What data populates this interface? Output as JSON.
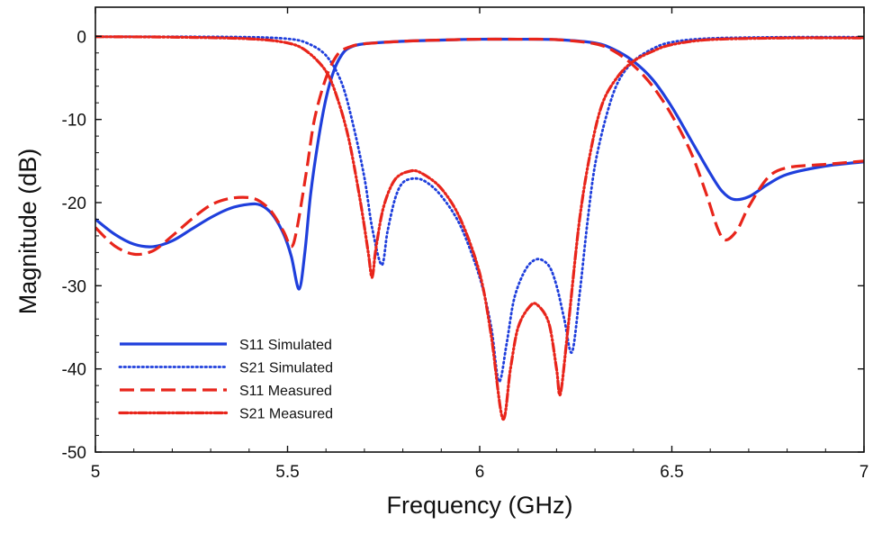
{
  "chart_data": {
    "type": "line",
    "xlabel": "Frequency (GHz)",
    "ylabel": "Magnitude (dB)",
    "xlim": [
      5,
      7
    ],
    "ylim": [
      -50,
      3.5
    ],
    "xticks": [
      5,
      5.5,
      6,
      6.5,
      7
    ],
    "xtick_labels": [
      "5",
      "5.5",
      "6",
      "6.5",
      "7"
    ],
    "yticks": [
      0,
      -10,
      -20,
      -30,
      -40,
      -50
    ],
    "ytick_labels": [
      "0",
      "-10",
      "-20",
      "-30",
      "-40",
      "-50"
    ],
    "grid": false,
    "legend_position": "bottom-left",
    "series": [
      {
        "name": "S11 Simulated",
        "color": "#1f3fdc",
        "style": "solid",
        "points": [
          [
            5.0,
            -22.0
          ],
          [
            5.05,
            -23.8
          ],
          [
            5.1,
            -25.0
          ],
          [
            5.15,
            -25.3
          ],
          [
            5.2,
            -24.6
          ],
          [
            5.25,
            -23.2
          ],
          [
            5.3,
            -21.8
          ],
          [
            5.35,
            -20.7
          ],
          [
            5.4,
            -20.2
          ],
          [
            5.43,
            -20.3
          ],
          [
            5.46,
            -21.4
          ],
          [
            5.49,
            -23.8
          ],
          [
            5.51,
            -26.5
          ],
          [
            5.53,
            -30.4
          ],
          [
            5.545,
            -26.0
          ],
          [
            5.56,
            -19.0
          ],
          [
            5.58,
            -12.5
          ],
          [
            5.6,
            -7.5
          ],
          [
            5.62,
            -4.2
          ],
          [
            5.64,
            -2.3
          ],
          [
            5.66,
            -1.4
          ],
          [
            5.7,
            -0.9
          ],
          [
            5.8,
            -0.6
          ],
          [
            5.9,
            -0.45
          ],
          [
            6.0,
            -0.35
          ],
          [
            6.1,
            -0.35
          ],
          [
            6.2,
            -0.4
          ],
          [
            6.3,
            -0.8
          ],
          [
            6.35,
            -1.6
          ],
          [
            6.4,
            -3.0
          ],
          [
            6.45,
            -5.2
          ],
          [
            6.5,
            -8.5
          ],
          [
            6.55,
            -12.5
          ],
          [
            6.6,
            -16.5
          ],
          [
            6.63,
            -18.6
          ],
          [
            6.66,
            -19.6
          ],
          [
            6.7,
            -19.3
          ],
          [
            6.75,
            -17.8
          ],
          [
            6.8,
            -16.6
          ],
          [
            6.9,
            -15.6
          ],
          [
            7.0,
            -15.1
          ]
        ]
      },
      {
        "name": "S21 Simulated",
        "color": "#1f3fdc",
        "style": "dotted",
        "points": [
          [
            5.0,
            -0.05
          ],
          [
            5.2,
            -0.05
          ],
          [
            5.4,
            -0.1
          ],
          [
            5.5,
            -0.3
          ],
          [
            5.55,
            -0.8
          ],
          [
            5.6,
            -2.3
          ],
          [
            5.64,
            -5.5
          ],
          [
            5.67,
            -10.5
          ],
          [
            5.7,
            -17.0
          ],
          [
            5.72,
            -23.0
          ],
          [
            5.745,
            -27.5
          ],
          [
            5.76,
            -23.5
          ],
          [
            5.78,
            -19.5
          ],
          [
            5.8,
            -17.6
          ],
          [
            5.83,
            -17.1
          ],
          [
            5.86,
            -17.5
          ],
          [
            5.9,
            -19.2
          ],
          [
            5.95,
            -22.8
          ],
          [
            6.0,
            -29.0
          ],
          [
            6.03,
            -35.0
          ],
          [
            6.05,
            -41.5
          ],
          [
            6.07,
            -37.0
          ],
          [
            6.09,
            -31.5
          ],
          [
            6.12,
            -28.0
          ],
          [
            6.15,
            -26.8
          ],
          [
            6.18,
            -27.6
          ],
          [
            6.2,
            -30.0
          ],
          [
            6.22,
            -34.0
          ],
          [
            6.24,
            -38.0
          ],
          [
            6.26,
            -31.0
          ],
          [
            6.28,
            -22.5
          ],
          [
            6.3,
            -15.5
          ],
          [
            6.33,
            -9.5
          ],
          [
            6.36,
            -5.5
          ],
          [
            6.4,
            -3.0
          ],
          [
            6.45,
            -1.5
          ],
          [
            6.5,
            -0.7
          ],
          [
            6.6,
            -0.25
          ],
          [
            6.8,
            -0.1
          ],
          [
            7.0,
            -0.1
          ]
        ]
      },
      {
        "name": "S11 Measured",
        "color": "#e8251b",
        "style": "dashed",
        "points": [
          [
            5.0,
            -23.0
          ],
          [
            5.05,
            -25.2
          ],
          [
            5.1,
            -26.2
          ],
          [
            5.15,
            -25.8
          ],
          [
            5.2,
            -24.0
          ],
          [
            5.25,
            -22.0
          ],
          [
            5.3,
            -20.3
          ],
          [
            5.35,
            -19.5
          ],
          [
            5.4,
            -19.4
          ],
          [
            5.43,
            -19.9
          ],
          [
            5.46,
            -21.2
          ],
          [
            5.49,
            -23.5
          ],
          [
            5.51,
            -25.3
          ],
          [
            5.525,
            -23.0
          ],
          [
            5.55,
            -16.0
          ],
          [
            5.57,
            -10.0
          ],
          [
            5.6,
            -5.0
          ],
          [
            5.63,
            -2.2
          ],
          [
            5.66,
            -1.3
          ],
          [
            5.7,
            -0.9
          ],
          [
            5.8,
            -0.6
          ],
          [
            5.9,
            -0.45
          ],
          [
            6.0,
            -0.35
          ],
          [
            6.1,
            -0.35
          ],
          [
            6.2,
            -0.4
          ],
          [
            6.3,
            -0.9
          ],
          [
            6.35,
            -1.8
          ],
          [
            6.4,
            -3.5
          ],
          [
            6.45,
            -6.0
          ],
          [
            6.5,
            -9.5
          ],
          [
            6.55,
            -14.0
          ],
          [
            6.59,
            -19.0
          ],
          [
            6.62,
            -23.2
          ],
          [
            6.64,
            -24.5
          ],
          [
            6.67,
            -23.3
          ],
          [
            6.7,
            -20.5
          ],
          [
            6.75,
            -17.0
          ],
          [
            6.8,
            -15.8
          ],
          [
            6.9,
            -15.4
          ],
          [
            7.0,
            -15.0
          ]
        ]
      },
      {
        "name": "S21 Measured",
        "color": "#e8251b",
        "style": "dashdot",
        "points": [
          [
            5.0,
            -0.05
          ],
          [
            5.2,
            -0.1
          ],
          [
            5.4,
            -0.3
          ],
          [
            5.5,
            -0.8
          ],
          [
            5.55,
            -1.8
          ],
          [
            5.6,
            -4.2
          ],
          [
            5.63,
            -7.5
          ],
          [
            5.66,
            -12.5
          ],
          [
            5.69,
            -20.0
          ],
          [
            5.71,
            -26.0
          ],
          [
            5.72,
            -29.0
          ],
          [
            5.73,
            -25.5
          ],
          [
            5.75,
            -20.5
          ],
          [
            5.78,
            -17.2
          ],
          [
            5.82,
            -16.2
          ],
          [
            5.85,
            -16.5
          ],
          [
            5.9,
            -18.3
          ],
          [
            5.95,
            -22.0
          ],
          [
            6.0,
            -28.5
          ],
          [
            6.03,
            -36.0
          ],
          [
            6.06,
            -46.0
          ],
          [
            6.08,
            -40.0
          ],
          [
            6.1,
            -35.0
          ],
          [
            6.13,
            -32.5
          ],
          [
            6.15,
            -32.3
          ],
          [
            6.18,
            -34.5
          ],
          [
            6.2,
            -40.0
          ],
          [
            6.21,
            -43.0
          ],
          [
            6.23,
            -35.0
          ],
          [
            6.26,
            -22.0
          ],
          [
            6.29,
            -13.5
          ],
          [
            6.32,
            -8.0
          ],
          [
            6.36,
            -4.8
          ],
          [
            6.4,
            -3.0
          ],
          [
            6.45,
            -1.8
          ],
          [
            6.5,
            -1.0
          ],
          [
            6.6,
            -0.4
          ],
          [
            6.8,
            -0.2
          ],
          [
            7.0,
            -0.2
          ]
        ]
      }
    ]
  }
}
